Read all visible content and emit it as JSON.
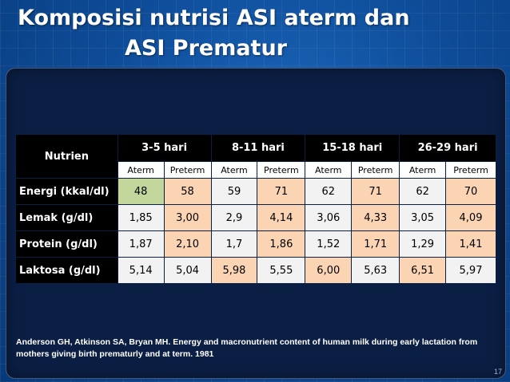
{
  "title": {
    "line1": "Komposisi nutrisi ASI aterm dan",
    "line2": "ASI Prematur"
  },
  "table": {
    "corner_label": "Nutrien",
    "periods": [
      "3-5 hari",
      "8-11 hari",
      "15-18 hari",
      "26-29 hari"
    ],
    "subheaders": [
      "Aterm",
      "Preterm",
      "Aterm",
      "Preterm",
      "Aterm",
      "Preterm",
      "Aterm",
      "Preterm"
    ],
    "rows": [
      {
        "label": "Energi (kkal/dl)",
        "values": [
          "48",
          "58",
          "59",
          "71",
          "62",
          "71",
          "62",
          "70"
        ]
      },
      {
        "label": "Lemak (g/dl)",
        "values": [
          "1,85",
          "3,00",
          "2,9",
          "4,14",
          "3,06",
          "4,33",
          "3,05",
          "4,09"
        ]
      },
      {
        "label": "Protein (g/dl)",
        "values": [
          "1,87",
          "2,10",
          "1,7",
          "1,86",
          "1,52",
          "1,71",
          "1,29",
          "1,41"
        ]
      },
      {
        "label": "Laktosa (g/dl)",
        "values": [
          "5,14",
          "5,04",
          "5,98",
          "5,55",
          "6,00",
          "5,63",
          "6,51",
          "5,97"
        ]
      }
    ],
    "cell_colors": {
      "green": "#c3d69b",
      "peach": "#fbd4b4",
      "white": "#f2f2f2"
    }
  },
  "reference": "Anderson GH, Atkinson SA, Bryan MH. Energy and macronutrient content of human milk during early lactation from mothers giving birth prematurly and at term. 1981",
  "page_number": "17"
}
